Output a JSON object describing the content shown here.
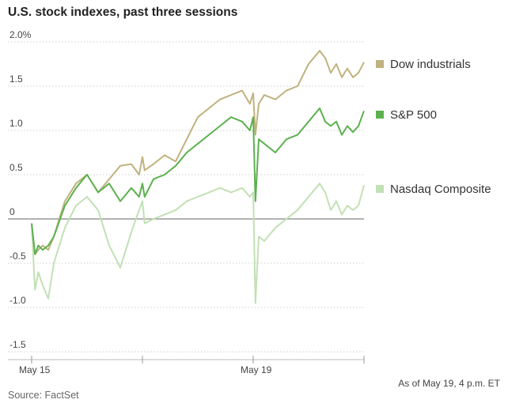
{
  "chart_data": {
    "type": "line",
    "title": "U.S. stock indexes, past three sessions",
    "xlabel": "",
    "ylabel": "",
    "ylim": [
      -1.5,
      2.0
    ],
    "xlim": [
      0,
      3
    ],
    "y_ticks": [
      {
        "value": 2.0,
        "label": "2.0%"
      },
      {
        "value": 1.5,
        "label": "1.5"
      },
      {
        "value": 1.0,
        "label": "1.0"
      },
      {
        "value": 0.5,
        "label": "0.5"
      },
      {
        "value": 0,
        "label": "0"
      },
      {
        "value": -0.5,
        "label": "-0.5"
      },
      {
        "value": -1.0,
        "label": "-1.0"
      },
      {
        "value": -1.5,
        "label": "-1.5"
      }
    ],
    "x_ticks": [
      {
        "x": 0,
        "label": "May 15"
      },
      {
        "x": 1,
        "label": ""
      },
      {
        "x": 2,
        "label": "May 19"
      },
      {
        "x": 3,
        "label": ""
      }
    ],
    "grid": "horizontal dotted",
    "legend_position": "right",
    "series": [
      {
        "name": "Dow industrials",
        "color": "#c0b27e",
        "x": [
          0,
          0.03,
          0.06,
          0.1,
          0.15,
          0.2,
          0.3,
          0.4,
          0.5,
          0.6,
          0.7,
          0.8,
          0.9,
          0.97,
          1.0,
          1.02,
          1.1,
          1.2,
          1.3,
          1.4,
          1.5,
          1.6,
          1.7,
          1.8,
          1.9,
          1.97,
          2.0,
          2.02,
          2.05,
          2.1,
          2.2,
          2.3,
          2.4,
          2.5,
          2.6,
          2.65,
          2.7,
          2.75,
          2.8,
          2.85,
          2.9,
          2.95,
          3.0
        ],
        "values": [
          -0.05,
          -0.4,
          -0.35,
          -0.3,
          -0.35,
          -0.2,
          0.2,
          0.4,
          0.5,
          0.3,
          0.45,
          0.6,
          0.62,
          0.5,
          0.7,
          0.55,
          0.62,
          0.72,
          0.65,
          0.9,
          1.15,
          1.25,
          1.35,
          1.4,
          1.45,
          1.3,
          1.42,
          0.95,
          1.3,
          1.4,
          1.35,
          1.45,
          1.5,
          1.75,
          1.9,
          1.82,
          1.65,
          1.75,
          1.6,
          1.7,
          1.6,
          1.65,
          1.77
        ]
      },
      {
        "name": "S&P 500",
        "color": "#5cb14e",
        "x": [
          0,
          0.03,
          0.06,
          0.1,
          0.15,
          0.2,
          0.3,
          0.4,
          0.5,
          0.6,
          0.7,
          0.8,
          0.9,
          0.97,
          1.0,
          1.02,
          1.1,
          1.2,
          1.3,
          1.4,
          1.5,
          1.6,
          1.7,
          1.8,
          1.9,
          1.97,
          2.0,
          2.02,
          2.05,
          2.1,
          2.2,
          2.3,
          2.4,
          2.5,
          2.6,
          2.65,
          2.7,
          2.75,
          2.8,
          2.85,
          2.9,
          2.95,
          3.0
        ],
        "values": [
          -0.05,
          -0.4,
          -0.3,
          -0.35,
          -0.3,
          -0.2,
          0.15,
          0.35,
          0.5,
          0.3,
          0.4,
          0.2,
          0.35,
          0.25,
          0.4,
          0.25,
          0.45,
          0.5,
          0.6,
          0.75,
          0.85,
          0.95,
          1.05,
          1.15,
          1.1,
          1.0,
          1.15,
          0.2,
          0.9,
          0.85,
          0.75,
          0.9,
          0.95,
          1.1,
          1.25,
          1.1,
          1.05,
          1.1,
          0.95,
          1.05,
          0.98,
          1.05,
          1.22
        ]
      },
      {
        "name": "Nasdaq Composite",
        "color": "#c2e0b5",
        "x": [
          0,
          0.03,
          0.06,
          0.1,
          0.15,
          0.2,
          0.3,
          0.4,
          0.5,
          0.6,
          0.7,
          0.8,
          0.9,
          0.97,
          1.0,
          1.02,
          1.1,
          1.2,
          1.3,
          1.4,
          1.5,
          1.6,
          1.7,
          1.8,
          1.9,
          1.97,
          2.0,
          2.02,
          2.05,
          2.1,
          2.2,
          2.3,
          2.4,
          2.5,
          2.6,
          2.65,
          2.7,
          2.75,
          2.8,
          2.85,
          2.9,
          2.95,
          3.0
        ],
        "values": [
          -0.05,
          -0.8,
          -0.6,
          -0.75,
          -0.9,
          -0.5,
          -0.1,
          0.15,
          0.25,
          0.1,
          -0.3,
          -0.55,
          -0.15,
          0.1,
          0.2,
          -0.05,
          0.0,
          0.05,
          0.1,
          0.2,
          0.25,
          0.3,
          0.35,
          0.3,
          0.35,
          0.25,
          0.3,
          -0.95,
          -0.2,
          -0.25,
          -0.1,
          0.0,
          0.1,
          0.25,
          0.4,
          0.3,
          0.1,
          0.2,
          0.05,
          0.15,
          0.1,
          0.15,
          0.38
        ]
      }
    ]
  },
  "footer": {
    "source": "Source: FactSet",
    "note": "As of May 19, 4 p.m. ET"
  }
}
